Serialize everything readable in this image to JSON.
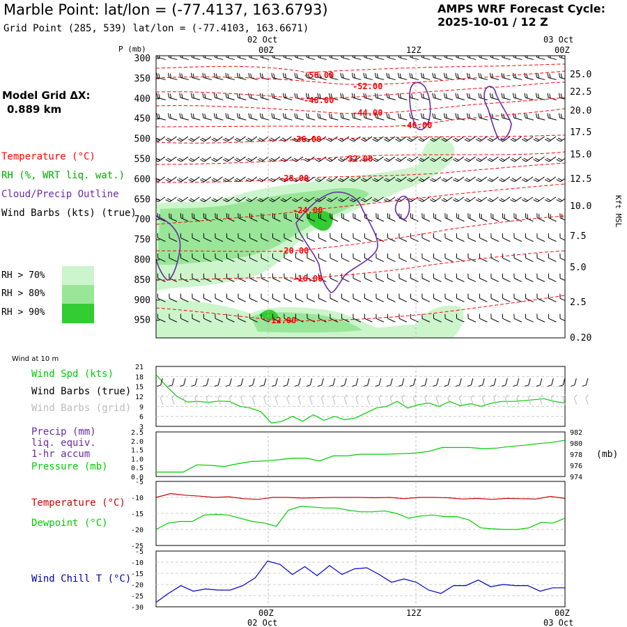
{
  "header": {
    "title": "Marble Point:  lat/lon = (-77.4137, 163.6793)",
    "grid_point": "Grid Point (285, 539) lat/lon = (-77.4103, 163.6671)",
    "cycle_label": "AMPS WRF Forecast Cycle:",
    "cycle_value": "2025-10-01 / 12  Z"
  },
  "model_grid": {
    "label": "Model Grid ΔX:",
    "value": "0.889 km"
  },
  "legend_upper": {
    "temperature": "Temperature (°C)",
    "rh": "RH (%, WRT liq. wat.)",
    "cloud": "Cloud/Precip Outline",
    "wind": "Wind Barbs (kts) (true)",
    "rh70": "RH > 70%",
    "rh80": "RH > 80%",
    "rh90": "RH > 90%"
  },
  "legend_lower": {
    "wind_at_10m": "Wind at 10 m",
    "wind_spd": "Wind Spd (kts)",
    "barbs_true": "Wind Barbs (true)",
    "barbs_grid": "Wind Barbs (grid)",
    "precip": "Precip (mm)",
    "precip2": "liq. equiv.",
    "precip3": "1-hr accum",
    "pressure": "Pressure (mb)",
    "temperature": "Temperature (°C)",
    "dewpoint": "Dewpoint (°C)",
    "windchill": "Wind Chill T (°C)"
  },
  "colors": {
    "temperature": "#ff0000",
    "rh_green": "#00aa00",
    "cloud": "#6a2aa0",
    "wind": "#000000",
    "wind_grid": "#aaaaaa",
    "pressure": "#00cc00",
    "dewpoint": "#00cc00",
    "windchill": "#0000cc",
    "rh70": "#ccf5cc",
    "rh80": "#99e699",
    "rh90": "#33cc33"
  },
  "time_axis": {
    "top_day_labels": [
      "02 Oct",
      "03 Oct"
    ],
    "top_hour_labels": [
      "00Z",
      "12Z",
      "00Z"
    ],
    "bottom_hour_labels": [
      "00Z",
      "12Z",
      "00Z"
    ],
    "bottom_day_labels": [
      "02 Oct",
      "03 Oct"
    ]
  },
  "chart_data": [
    {
      "type": "heatmap",
      "ylabel": "P (mb)",
      "y2label": "Kft MSL",
      "pressure_ticks": [
        "300",
        "350",
        "400",
        "450",
        "500",
        "550",
        "600",
        "650",
        "700",
        "750",
        "800",
        "850",
        "900",
        "950"
      ],
      "kft_ticks": [
        "25.0",
        "22.5",
        "20.0",
        "17.5",
        "15.0",
        "12.5",
        "10.0",
        "7.5",
        "5.0",
        "2.5",
        "0.20"
      ],
      "temperature_contour_labels": [
        "-56.00",
        "-52.00",
        "-48.00",
        "-44.00",
        "-40.00",
        "-36.00",
        "-32.00",
        "-28.00",
        "-24.00",
        "-20.00",
        "-16.00",
        "-12.00"
      ]
    },
    {
      "type": "line",
      "name_label": "Wind Spd (kts)",
      "y_ticks": [
        "21",
        "18",
        "15",
        "12",
        "9",
        "6",
        "3"
      ],
      "ylim": [
        3,
        21
      ],
      "values": [
        18.5,
        15,
        12,
        10.3,
        10.5,
        10.2,
        10.6,
        10.5,
        9,
        8.5,
        7.4,
        4,
        4.5,
        6,
        4.5,
        6.5,
        4.8,
        6,
        5,
        5.5,
        7,
        8.5,
        9,
        10.5,
        8.5,
        9.5,
        10,
        9,
        10.5,
        9.2,
        9.8,
        9,
        10,
        10.5,
        10.5,
        10.7,
        11,
        11.3,
        10.5,
        10
      ]
    },
    {
      "type": "line",
      "precip_ticks": [
        "2.5",
        "2.0",
        "1.5",
        "1.0",
        "0.5",
        "0.0"
      ],
      "pressure_ticks": [
        "982",
        "980",
        "978",
        "976",
        "974"
      ],
      "y2label": "(mb)",
      "pressure_mb": [
        974.8,
        974.8,
        974.8,
        976.1,
        976.0,
        975.8,
        976.3,
        976.7,
        976.8,
        977.0,
        977.3,
        977.3,
        976.8,
        977.7,
        977.7,
        978.0,
        978.0,
        978.0,
        978.1,
        978.2,
        978.5,
        979.2,
        979.2,
        979.2,
        979.0,
        979.1,
        979.4,
        979.6,
        979.9,
        980.1,
        980.5
      ]
    },
    {
      "type": "line",
      "y_ticks": [
        "-5",
        "-10",
        "-15",
        "-20",
        "-25"
      ],
      "ylim": [
        -25,
        -5
      ],
      "temperature": [
        -10,
        -8.8,
        -9.3,
        -9.6,
        -10,
        -9.8,
        -10.4,
        -10.6,
        -10,
        -10,
        -10.2,
        -10.1,
        -10,
        -10,
        -10,
        -10.1,
        -10,
        -10.4,
        -10,
        -10,
        -10.1,
        -10.5,
        -10.3,
        -10.6,
        -10.3,
        -10.4,
        -10.5,
        -9.7,
        -10.3
      ],
      "dewpoint": [
        -20,
        -18,
        -17.5,
        -17.5,
        -15.5,
        -15.3,
        -15.5,
        -16.5,
        -17.5,
        -18,
        -19,
        -14,
        -12.8,
        -13,
        -13.3,
        -13.3,
        -14,
        -14.5,
        -14.5,
        -14.2,
        -15,
        -16.5,
        -15.8,
        -15.5,
        -16,
        -16,
        -17,
        -19.5,
        -19.8,
        -20,
        -20,
        -19.5,
        -17.8,
        -18,
        -16.5
      ]
    },
    {
      "type": "line",
      "y_ticks": [
        "-5",
        "-10",
        "-15",
        "-20",
        "-25",
        "-30"
      ],
      "ylim": [
        -30,
        -5
      ],
      "windchill": [
        -28,
        -24,
        -20.5,
        -23,
        -22,
        -22.5,
        -22.5,
        -20.5,
        -17,
        -9.5,
        -11,
        -15.5,
        -12,
        -16,
        -11.5,
        -15.5,
        -13,
        -12.5,
        -15.5,
        -19,
        -17.5,
        -19,
        -22.5,
        -24,
        -20.5,
        -20.5,
        -18,
        -21,
        -20,
        -20.5,
        -20.5,
        -23,
        -21.5,
        -21.5
      ]
    }
  ]
}
